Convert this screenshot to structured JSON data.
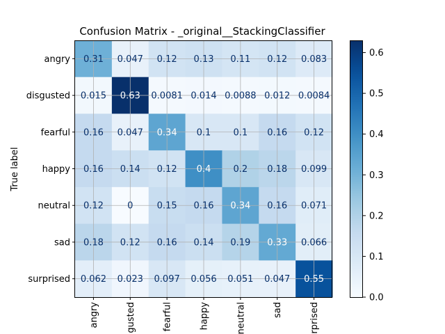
{
  "chart_data": {
    "type": "heatmap",
    "title": "Confusion Matrix - _original__StackingClassifier",
    "ylabel": "True label",
    "xlabel": "",
    "colormap": "Blues",
    "grid": true,
    "colorbar": {
      "range": [
        0.0,
        0.63
      ],
      "ticks": [
        "0.0",
        "0.1",
        "0.2",
        "0.3",
        "0.4",
        "0.5",
        "0.6"
      ]
    },
    "row_labels": [
      "angry",
      "disgusted",
      "fearful",
      "happy",
      "neutral",
      "sad",
      "surprised"
    ],
    "col_labels": [
      "angry",
      "disgusted",
      "fearful",
      "happy",
      "neutral",
      "sad",
      "surprised"
    ],
    "col_labels_visible": [
      "angry",
      "gusted",
      "fearful",
      "happy",
      "neutral",
      "sad",
      "rprised"
    ],
    "values": [
      [
        0.31,
        0.047,
        0.12,
        0.13,
        0.11,
        0.12,
        0.083
      ],
      [
        0.015,
        0.63,
        0.0081,
        0.014,
        0.0088,
        0.012,
        0.0084
      ],
      [
        0.16,
        0.047,
        0.34,
        0.1,
        0.1,
        0.16,
        0.12
      ],
      [
        0.16,
        0.14,
        0.12,
        0.4,
        0.2,
        0.18,
        0.099
      ],
      [
        0.12,
        0,
        0.15,
        0.16,
        0.34,
        0.16,
        0.071
      ],
      [
        0.18,
        0.12,
        0.16,
        0.14,
        0.19,
        0.33,
        0.066
      ],
      [
        0.062,
        0.023,
        0.097,
        0.056,
        0.051,
        0.047,
        0.55
      ]
    ]
  }
}
